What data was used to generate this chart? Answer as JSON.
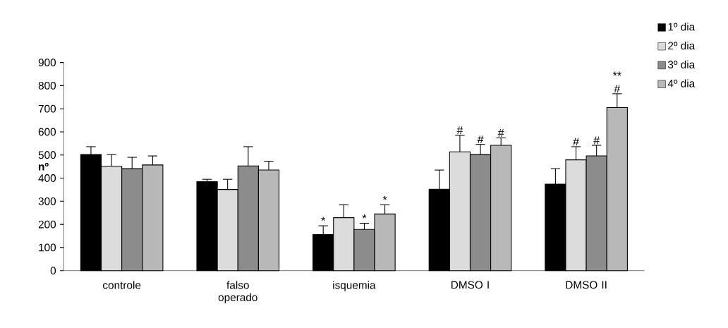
{
  "chart_data": {
    "type": "bar",
    "ylabel": "nº",
    "categories": [
      "controle",
      "falso operado",
      "isquemia",
      "DMSO I",
      "DMSO II"
    ],
    "series": [
      {
        "name": "1º dia",
        "color": "#000000",
        "values": [
          502,
          385,
          156,
          352,
          374
        ],
        "errors": [
          34,
          10,
          38,
          83,
          67
        ],
        "value_labels": [
          null,
          null,
          "*",
          null,
          null
        ]
      },
      {
        "name": "2º dia",
        "color": "#dcdcdc",
        "values": [
          451,
          351,
          229,
          514,
          479
        ],
        "errors": [
          51,
          44,
          56,
          71,
          57
        ],
        "value_labels": [
          null,
          null,
          null,
          "#",
          "#"
        ]
      },
      {
        "name": "3º dia",
        "color": "#8c8c8c",
        "values": [
          441,
          453,
          178,
          502,
          496
        ],
        "errors": [
          49,
          83,
          27,
          44,
          46
        ],
        "value_labels": [
          null,
          null,
          "*",
          "#",
          "#"
        ]
      },
      {
        "name": "4º dia",
        "color": "#b8b8b8",
        "values": [
          457,
          435,
          245,
          542,
          705
        ],
        "errors": [
          39,
          38,
          40,
          32,
          60
        ],
        "value_labels": [
          null,
          null,
          "*",
          "#",
          "** #"
        ]
      }
    ],
    "ylim": [
      0,
      900
    ],
    "yticks": [
      0,
      100,
      200,
      300,
      400,
      500,
      600,
      700,
      800,
      900
    ],
    "grid": false,
    "legend": "top right"
  }
}
